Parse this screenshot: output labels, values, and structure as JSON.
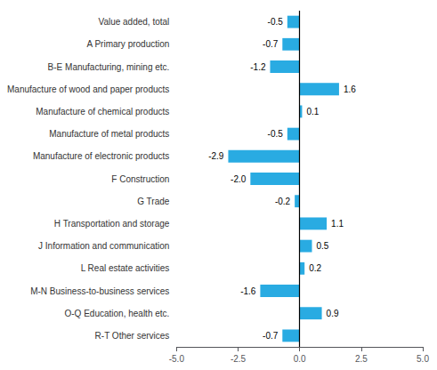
{
  "chart_data": {
    "type": "bar",
    "orientation": "horizontal",
    "categories": [
      "Value added, total",
      "A Primary production",
      "B-E Manufacturing, mining etc.",
      "Manufacture of wood and paper products",
      "Manufacture of chemical products",
      "Manufacture of metal products",
      "Manufacture of electronic products",
      "F Construction",
      "G Trade",
      "H Transportation and storage",
      "J Information and communication",
      "L Real estate activities",
      "M-N Business-to-business services",
      "O-Q Education, health etc.",
      "R-T Other services"
    ],
    "values": [
      -0.5,
      -0.7,
      -1.2,
      1.6,
      0.1,
      -0.5,
      -2.9,
      -2.0,
      -0.2,
      1.1,
      0.5,
      0.2,
      -1.6,
      0.9,
      -0.7
    ],
    "value_labels": [
      "-0.5",
      "-0.7",
      "-1.2",
      "1.6",
      "0.1",
      "-0.5",
      "-2.9",
      "-2.0",
      "-0.2",
      "1.1",
      "0.5",
      "0.2",
      "-1.6",
      "0.9",
      "-0.7"
    ],
    "data_labels": true,
    "color": "#29abe2",
    "xlim": [
      -5.0,
      5.0
    ],
    "xticks": [
      {
        "value": -5.0,
        "label": "-5.0"
      },
      -2.5,
      {
        "value": 0.0,
        "label": "0.0"
      },
      2.5,
      {
        "value": 5.0,
        "label": "5.0"
      }
    ],
    "grid": false
  }
}
